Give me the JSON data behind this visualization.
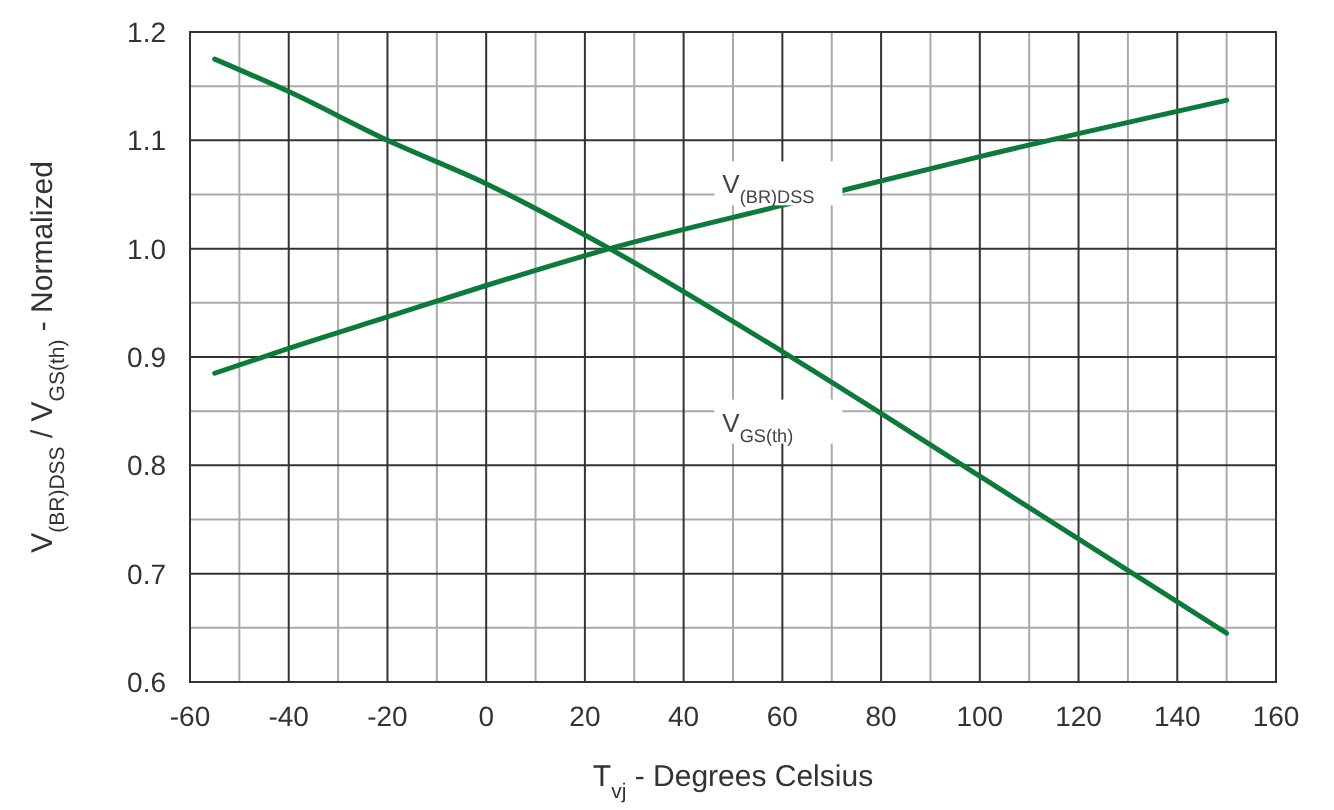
{
  "chart_data": {
    "type": "line",
    "xlabel": "T$_{vj}$ - Degrees Celsius",
    "ylabel": "V$_{(BR)DSS}$ / V$_{GS(th)}$ - Normalized",
    "x": [
      -55,
      -40,
      -20,
      0,
      25,
      60,
      100,
      150
    ],
    "series": [
      {
        "name": "V$_{(BR)DSS}$",
        "color": "#0b7a3b",
        "values": [
          0.885,
          0.908,
          0.937,
          0.966,
          1.0,
          1.04,
          1.085,
          1.137
        ]
      },
      {
        "name": "V$_{GS(th)}$",
        "color": "#0b7a3b",
        "values": [
          1.175,
          1.145,
          1.1,
          1.06,
          1.0,
          0.905,
          0.79,
          0.645
        ]
      }
    ],
    "xlim": [
      -60,
      160
    ],
    "xticks": [
      -60,
      -40,
      -20,
      0,
      20,
      40,
      60,
      80,
      100,
      120,
      140,
      160
    ],
    "ylim": [
      0.6,
      1.2
    ],
    "yticks": [
      {
        "value": 0.6,
        "label": "0.6"
      },
      {
        "value": 0.7,
        "label": "0.7"
      },
      {
        "value": 0.8,
        "label": "0.8"
      },
      {
        "value": 0.9,
        "label": "0.9"
      },
      {
        "value": 1.0,
        "label": "1.0"
      },
      {
        "value": 1.1,
        "label": "1.1"
      },
      {
        "value": 1.2,
        "label": "1.2"
      }
    ],
    "grid": true,
    "marker": "none",
    "line_style": "solid"
  }
}
